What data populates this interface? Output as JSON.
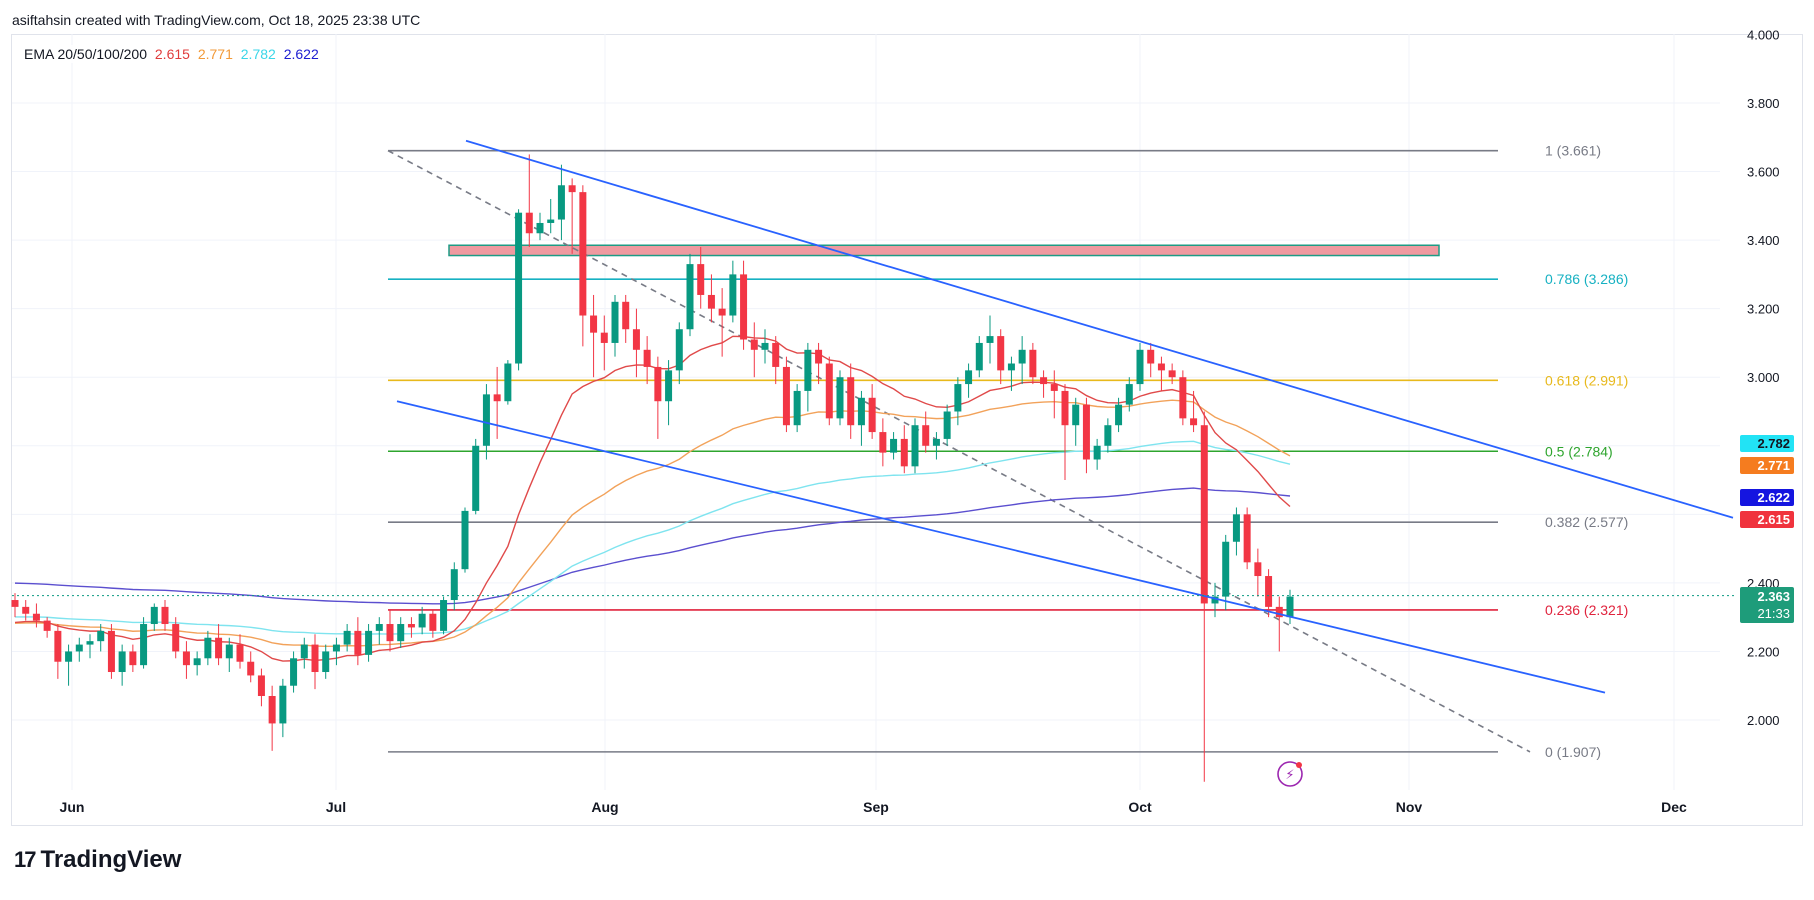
{
  "header": {
    "text": "asiftahsin created with TradingView.com, Oct 18, 2025 23:38 UTC"
  },
  "legend": {
    "label": "EMA 20/50/100/200",
    "values": [
      {
        "text": "2.615",
        "color": "#e03b3b"
      },
      {
        "text": "2.771",
        "color": "#f29a38"
      },
      {
        "text": "2.782",
        "color": "#3ad6e8"
      },
      {
        "text": "2.622",
        "color": "#1c1cd1"
      }
    ]
  },
  "logo": {
    "mark": "17",
    "word": "TradingView"
  },
  "badges": [
    {
      "text": "2.782",
      "bg": "#22e3f5",
      "fg": "#131722",
      "value": 2.782
    },
    {
      "text": "2.771",
      "bg": "#f57c1f",
      "fg": "#ffffff",
      "value": 2.771
    },
    {
      "text": "2.622",
      "bg": "#1515e0",
      "fg": "#ffffff",
      "value": 2.622
    },
    {
      "text": "2.615",
      "bg": "#f0333d",
      "fg": "#ffffff",
      "value": 2.615
    }
  ],
  "price_badge": {
    "price": "2.363",
    "timer": "21:33",
    "bg": "#1e9c7a",
    "value": 2.363
  },
  "chart_data": {
    "type": "candlestick",
    "y_ticks": [
      "4.000",
      "3.800",
      "3.600",
      "3.400",
      "3.200",
      "3.000",
      "2.400",
      "2.200",
      "2.000"
    ],
    "x_ticks": [
      "Jun",
      "Jul",
      "Aug",
      "Sep",
      "Oct",
      "Nov",
      "Dec"
    ],
    "ylim": [
      1.82,
      4.0
    ],
    "fib_levels": [
      {
        "label": "1 (3.661)",
        "value": 3.661,
        "color": "#787b86"
      },
      {
        "label": "0.786 (3.286)",
        "value": 3.286,
        "color": "#16b1c2"
      },
      {
        "label": "0.618 (2.991)",
        "value": 2.991,
        "color": "#e8b91c"
      },
      {
        "label": "0.5 (2.784)",
        "value": 2.784,
        "color": "#2ea52e"
      },
      {
        "label": "0.382 (2.577)",
        "value": 2.577,
        "color": "#787b86"
      },
      {
        "label": "0.236 (2.321)",
        "value": 2.321,
        "color": "#e0233d"
      },
      {
        "label": "0 (1.907)",
        "value": 1.907,
        "color": "#787b86"
      }
    ],
    "resistance_zone": {
      "low": 3.355,
      "high": 3.385
    },
    "current_price": 2.363,
    "candles": [
      [
        2.35,
        2.37,
        2.3,
        2.33
      ],
      [
        2.33,
        2.35,
        2.29,
        2.31
      ],
      [
        2.31,
        2.34,
        2.27,
        2.29
      ],
      [
        2.29,
        2.3,
        2.24,
        2.26
      ],
      [
        2.26,
        2.28,
        2.12,
        2.17
      ],
      [
        2.17,
        2.22,
        2.1,
        2.2
      ],
      [
        2.2,
        2.24,
        2.17,
        2.22
      ],
      [
        2.22,
        2.25,
        2.18,
        2.23
      ],
      [
        2.23,
        2.28,
        2.2,
        2.26
      ],
      [
        2.26,
        2.28,
        2.12,
        2.14
      ],
      [
        2.14,
        2.22,
        2.1,
        2.2
      ],
      [
        2.2,
        2.22,
        2.14,
        2.16
      ],
      [
        2.16,
        2.3,
        2.15,
        2.28
      ],
      [
        2.28,
        2.34,
        2.26,
        2.33
      ],
      [
        2.33,
        2.35,
        2.26,
        2.28
      ],
      [
        2.28,
        2.3,
        2.18,
        2.2
      ],
      [
        2.2,
        2.23,
        2.12,
        2.16
      ],
      [
        2.16,
        2.2,
        2.13,
        2.18
      ],
      [
        2.18,
        2.26,
        2.16,
        2.24
      ],
      [
        2.24,
        2.28,
        2.16,
        2.18
      ],
      [
        2.18,
        2.24,
        2.14,
        2.22
      ],
      [
        2.22,
        2.25,
        2.15,
        2.17
      ],
      [
        2.17,
        2.2,
        2.11,
        2.13
      ],
      [
        2.13,
        2.15,
        2.04,
        2.07
      ],
      [
        2.07,
        2.1,
        1.91,
        1.99
      ],
      [
        1.99,
        2.12,
        1.95,
        2.1
      ],
      [
        2.1,
        2.2,
        2.08,
        2.18
      ],
      [
        2.18,
        2.24,
        2.15,
        2.22
      ],
      [
        2.22,
        2.25,
        2.09,
        2.14
      ],
      [
        2.14,
        2.22,
        2.12,
        2.2
      ],
      [
        2.2,
        2.24,
        2.16,
        2.22
      ],
      [
        2.22,
        2.28,
        2.2,
        2.26
      ],
      [
        2.26,
        2.3,
        2.16,
        2.19
      ],
      [
        2.19,
        2.28,
        2.17,
        2.26
      ],
      [
        2.26,
        2.3,
        2.22,
        2.28
      ],
      [
        2.28,
        2.32,
        2.2,
        2.23
      ],
      [
        2.23,
        2.3,
        2.21,
        2.28
      ],
      [
        2.28,
        2.3,
        2.24,
        2.27
      ],
      [
        2.27,
        2.33,
        2.25,
        2.31
      ],
      [
        2.31,
        2.32,
        2.24,
        2.26
      ],
      [
        2.26,
        2.36,
        2.25,
        2.35
      ],
      [
        2.35,
        2.46,
        2.32,
        2.44
      ],
      [
        2.44,
        2.62,
        2.43,
        2.61
      ],
      [
        2.61,
        2.82,
        2.6,
        2.8
      ],
      [
        2.8,
        2.98,
        2.76,
        2.95
      ],
      [
        2.95,
        3.03,
        2.82,
        2.93
      ],
      [
        2.93,
        3.05,
        2.92,
        3.04
      ],
      [
        3.04,
        3.49,
        3.02,
        3.48
      ],
      [
        3.48,
        3.65,
        3.38,
        3.42
      ],
      [
        3.42,
        3.48,
        3.4,
        3.45
      ],
      [
        3.45,
        3.52,
        3.42,
        3.46
      ],
      [
        3.46,
        3.62,
        3.4,
        3.56
      ],
      [
        3.56,
        3.58,
        3.36,
        3.54
      ],
      [
        3.54,
        3.56,
        3.09,
        3.18
      ],
      [
        3.18,
        3.24,
        3.0,
        3.13
      ],
      [
        3.13,
        3.18,
        3.02,
        3.1
      ],
      [
        3.1,
        3.24,
        3.06,
        3.22
      ],
      [
        3.22,
        3.24,
        3.1,
        3.14
      ],
      [
        3.14,
        3.2,
        3.0,
        3.08
      ],
      [
        3.08,
        3.12,
        2.98,
        3.03
      ],
      [
        3.03,
        3.06,
        2.82,
        2.93
      ],
      [
        2.93,
        3.05,
        2.86,
        3.02
      ],
      [
        3.02,
        3.16,
        2.98,
        3.14
      ],
      [
        3.14,
        3.36,
        3.12,
        3.33
      ],
      [
        3.33,
        3.38,
        3.2,
        3.24
      ],
      [
        3.24,
        3.3,
        3.16,
        3.2
      ],
      [
        3.2,
        3.26,
        3.06,
        3.18
      ],
      [
        3.18,
        3.34,
        3.16,
        3.3
      ],
      [
        3.3,
        3.34,
        3.08,
        3.11
      ],
      [
        3.11,
        3.16,
        3.0,
        3.08
      ],
      [
        3.08,
        3.14,
        3.04,
        3.1
      ],
      [
        3.1,
        3.12,
        2.98,
        3.03
      ],
      [
        3.03,
        3.06,
        2.84,
        2.86
      ],
      [
        2.86,
        2.98,
        2.84,
        2.96
      ],
      [
        2.96,
        3.1,
        2.9,
        3.08
      ],
      [
        3.08,
        3.1,
        2.98,
        3.04
      ],
      [
        3.04,
        3.06,
        2.86,
        2.88
      ],
      [
        2.88,
        3.02,
        2.86,
        3.0
      ],
      [
        3.0,
        3.04,
        2.82,
        2.86
      ],
      [
        2.86,
        2.96,
        2.8,
        2.94
      ],
      [
        2.94,
        2.98,
        2.82,
        2.84
      ],
      [
        2.84,
        2.88,
        2.74,
        2.78
      ],
      [
        2.78,
        2.84,
        2.76,
        2.82
      ],
      [
        2.82,
        2.86,
        2.72,
        2.74
      ],
      [
        2.74,
        2.88,
        2.72,
        2.86
      ],
      [
        2.86,
        2.9,
        2.78,
        2.8
      ],
      [
        2.8,
        2.84,
        2.76,
        2.82
      ],
      [
        2.82,
        2.92,
        2.8,
        2.9
      ],
      [
        2.9,
        3.0,
        2.86,
        2.98
      ],
      [
        2.98,
        3.04,
        2.94,
        3.02
      ],
      [
        3.02,
        3.12,
        3.0,
        3.1
      ],
      [
        3.1,
        3.18,
        3.04,
        3.12
      ],
      [
        3.12,
        3.14,
        2.98,
        3.02
      ],
      [
        3.02,
        3.06,
        2.96,
        3.04
      ],
      [
        3.04,
        3.12,
        2.98,
        3.08
      ],
      [
        3.08,
        3.1,
        2.98,
        3.0
      ],
      [
        3.0,
        3.02,
        2.94,
        2.98
      ],
      [
        2.98,
        3.02,
        2.88,
        2.96
      ],
      [
        2.96,
        2.98,
        2.7,
        2.86
      ],
      [
        2.86,
        2.94,
        2.8,
        2.92
      ],
      [
        2.92,
        2.94,
        2.72,
        2.76
      ],
      [
        2.76,
        2.82,
        2.73,
        2.8
      ],
      [
        2.8,
        2.88,
        2.78,
        2.86
      ],
      [
        2.86,
        2.94,
        2.84,
        2.92
      ],
      [
        2.92,
        3.0,
        2.9,
        2.98
      ],
      [
        2.98,
        3.1,
        2.96,
        3.08
      ],
      [
        3.08,
        3.1,
        3.0,
        3.04
      ],
      [
        3.04,
        3.06,
        2.96,
        3.02
      ],
      [
        3.02,
        3.04,
        2.98,
        3.0
      ],
      [
        3.0,
        3.02,
        2.86,
        2.88
      ],
      [
        2.88,
        2.96,
        2.84,
        2.86
      ],
      [
        2.86,
        2.9,
        1.82,
        2.34
      ],
      [
        2.34,
        2.4,
        2.3,
        2.36
      ],
      [
        2.36,
        2.54,
        2.32,
        2.52
      ],
      [
        2.52,
        2.62,
        2.48,
        2.6
      ],
      [
        2.6,
        2.62,
        2.44,
        2.46
      ],
      [
        2.46,
        2.5,
        2.36,
        2.42
      ],
      [
        2.42,
        2.44,
        2.3,
        2.33
      ],
      [
        2.33,
        2.36,
        2.2,
        2.3
      ],
      [
        2.3,
        2.38,
        2.28,
        2.36
      ]
    ]
  }
}
